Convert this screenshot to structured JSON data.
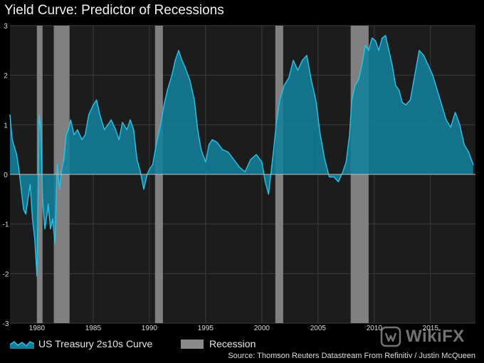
{
  "title": "Yield Curve: Predictor of Recessions",
  "legend": {
    "series_label": "US Treasury 2s10s Curve",
    "recession_label": "Recession"
  },
  "source": "Source: Thomson Reuters Datastream From Refinitiv / Justin McQueen",
  "watermark": "WikiFX",
  "colors": {
    "series_line": "#29c4ec",
    "series_fill": "#137e9a",
    "recession": "#808080",
    "background": "#000000",
    "plot_background": "#1c1c1c",
    "grid": "#3c3c3c"
  },
  "chart_data": {
    "type": "area",
    "title": "Yield Curve: Predictor of Recessions",
    "xlabel": "",
    "ylabel": "",
    "xlim": [
      1977.6,
      2019.0
    ],
    "ylim": [
      -3,
      3
    ],
    "x_ticks": [
      1980,
      1985,
      1990,
      1995,
      2000,
      2005,
      2010,
      2015
    ],
    "y_ticks": [
      -3,
      -2,
      -1,
      0,
      1,
      2,
      3
    ],
    "grid": true,
    "legend_position": "bottom-left",
    "recessions": [
      [
        1980.0,
        1980.5
      ],
      [
        1981.5,
        1982.9
      ],
      [
        1990.5,
        1991.2
      ],
      [
        2001.2,
        2001.9
      ],
      [
        2007.9,
        2009.5
      ]
    ],
    "series": [
      {
        "name": "US Treasury 2s10s Curve",
        "x": [
          1977.6,
          1977.8,
          1978.0,
          1978.2,
          1978.4,
          1978.6,
          1978.8,
          1979.0,
          1979.2,
          1979.4,
          1979.6,
          1979.8,
          1980.0,
          1980.1,
          1980.2,
          1980.35,
          1980.5,
          1980.7,
          1980.9,
          1981.0,
          1981.2,
          1981.4,
          1981.6,
          1981.8,
          1982.0,
          1982.2,
          1982.4,
          1982.6,
          1982.8,
          1983.0,
          1983.3,
          1983.6,
          1984.0,
          1984.3,
          1984.6,
          1985.0,
          1985.3,
          1985.6,
          1986.0,
          1986.3,
          1986.6,
          1987.0,
          1987.3,
          1987.6,
          1988.0,
          1988.3,
          1988.6,
          1988.9,
          1989.2,
          1989.5,
          1989.8,
          1990.0,
          1990.3,
          1990.6,
          1991.0,
          1991.3,
          1991.6,
          1992.0,
          1992.3,
          1992.6,
          1992.9,
          1993.2,
          1993.6,
          1994.0,
          1994.3,
          1994.6,
          1995.0,
          1995.3,
          1995.6,
          1996.0,
          1996.5,
          1997.0,
          1997.5,
          1998.0,
          1998.5,
          1999.0,
          1999.5,
          2000.0,
          2000.3,
          2000.6,
          2001.0,
          2001.3,
          2001.6,
          2002.0,
          2002.4,
          2002.8,
          2003.2,
          2003.6,
          2004.0,
          2004.4,
          2004.8,
          2005.2,
          2005.6,
          2006.0,
          2006.4,
          2006.8,
          2007.2,
          2007.5,
          2007.8,
          2008.0,
          2008.3,
          2008.6,
          2008.9,
          2009.2,
          2009.5,
          2009.8,
          2010.1,
          2010.4,
          2010.7,
          2011.0,
          2011.3,
          2011.6,
          2011.9,
          2012.2,
          2012.5,
          2012.8,
          2013.2,
          2013.6,
          2014.0,
          2014.4,
          2014.8,
          2015.2,
          2015.6,
          2016.0,
          2016.4,
          2016.8,
          2017.2,
          2017.6,
          2018.0,
          2018.4,
          2018.8
        ],
        "values": [
          1.2,
          0.7,
          0.55,
          0.4,
          0.1,
          -0.3,
          -0.7,
          -0.8,
          -0.5,
          -0.2,
          -0.9,
          -1.3,
          -2.05,
          -0.5,
          1.2,
          0.9,
          -0.5,
          -1.1,
          -0.8,
          -0.6,
          -1.1,
          -0.9,
          -1.4,
          0.2,
          -0.3,
          0.1,
          0.3,
          0.8,
          0.9,
          1.1,
          0.8,
          0.9,
          0.7,
          0.8,
          1.2,
          1.4,
          1.5,
          1.2,
          0.9,
          1.0,
          1.1,
          0.9,
          0.7,
          1.05,
          0.9,
          1.1,
          0.9,
          0.3,
          0.05,
          -0.3,
          0.0,
          0.1,
          0.2,
          0.6,
          1.0,
          1.4,
          1.7,
          2.0,
          2.3,
          2.5,
          2.3,
          2.15,
          1.9,
          1.5,
          0.9,
          0.5,
          0.25,
          0.6,
          0.7,
          0.65,
          0.5,
          0.45,
          0.3,
          0.15,
          0.05,
          0.3,
          0.4,
          0.25,
          -0.15,
          -0.4,
          0.4,
          1.05,
          1.5,
          1.8,
          1.95,
          2.3,
          2.1,
          2.3,
          2.4,
          1.9,
          1.5,
          0.8,
          0.3,
          -0.05,
          -0.05,
          -0.15,
          0.05,
          0.25,
          0.8,
          1.5,
          1.8,
          1.9,
          2.2,
          2.6,
          2.5,
          2.75,
          2.7,
          2.5,
          2.75,
          2.8,
          2.5,
          2.2,
          1.8,
          1.7,
          1.45,
          1.4,
          1.5,
          2.0,
          2.5,
          2.4,
          2.2,
          2.0,
          1.7,
          1.4,
          1.1,
          0.95,
          1.25,
          1.0,
          0.6,
          0.45,
          0.2
        ]
      }
    ]
  }
}
